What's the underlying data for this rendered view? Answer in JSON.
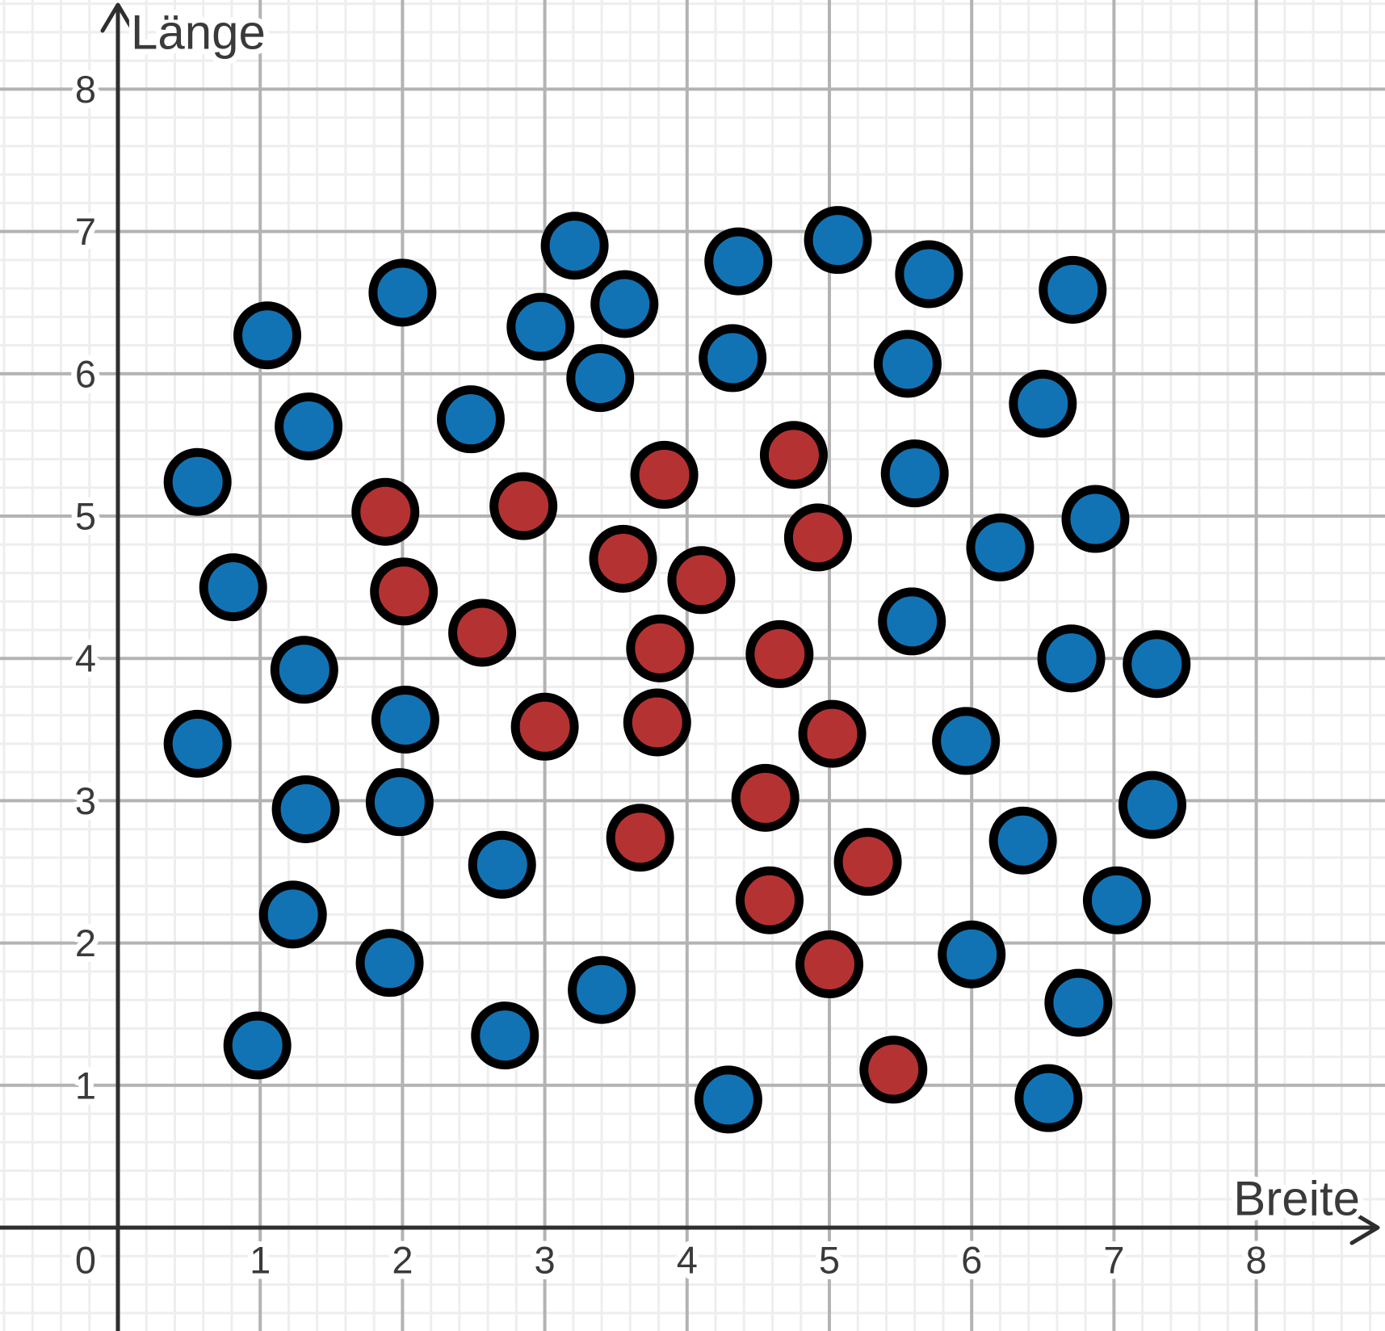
{
  "figure": {
    "background": "#ffffff",
    "axis_color": "#2e2e2e",
    "label_color": "#3a3a3a",
    "grid_major_color": "#b3b3b3",
    "grid_minor_color": "#eeeeee",
    "dot_stroke_color": "#000000"
  },
  "chart_data": {
    "type": "scatter",
    "title": "",
    "xlabel": "Breite",
    "ylabel": "Länge",
    "origin_label": "0",
    "xlim": [
      -0.83,
      8.9
    ],
    "ylim": [
      -0.73,
      8.63
    ],
    "x_ticks": [
      1,
      2,
      3,
      4,
      5,
      6,
      7,
      8
    ],
    "y_ticks": [
      1,
      2,
      3,
      4,
      5,
      6,
      7,
      8
    ],
    "grid": {
      "major_step": 1,
      "minor_step": 0.2,
      "visible": true
    },
    "legend": null,
    "series": [
      {
        "name": "blue",
        "color": "#1173b4",
        "points": [
          [
            3.21,
            6.9
          ],
          [
            5.06,
            6.94
          ],
          [
            4.36,
            6.79
          ],
          [
            5.7,
            6.7
          ],
          [
            6.71,
            6.59
          ],
          [
            2.0,
            6.57
          ],
          [
            3.56,
            6.49
          ],
          [
            2.97,
            6.33
          ],
          [
            1.05,
            6.27
          ],
          [
            4.32,
            6.11
          ],
          [
            5.55,
            6.07
          ],
          [
            3.39,
            5.97
          ],
          [
            6.5,
            5.79
          ],
          [
            2.48,
            5.68
          ],
          [
            1.34,
            5.63
          ],
          [
            5.6,
            5.3
          ],
          [
            0.56,
            5.24
          ],
          [
            6.87,
            4.98
          ],
          [
            6.2,
            4.78
          ],
          [
            0.81,
            4.5
          ],
          [
            5.58,
            4.26
          ],
          [
            6.7,
            4.0
          ],
          [
            7.3,
            3.96
          ],
          [
            1.31,
            3.92
          ],
          [
            2.02,
            3.57
          ],
          [
            5.96,
            3.42
          ],
          [
            0.56,
            3.4
          ],
          [
            1.98,
            2.99
          ],
          [
            7.27,
            2.97
          ],
          [
            1.32,
            2.94
          ],
          [
            6.36,
            2.72
          ],
          [
            2.7,
            2.55
          ],
          [
            7.02,
            2.3
          ],
          [
            1.23,
            2.2
          ],
          [
            6.0,
            1.92
          ],
          [
            1.91,
            1.86
          ],
          [
            3.4,
            1.67
          ],
          [
            6.75,
            1.58
          ],
          [
            2.72,
            1.35
          ],
          [
            0.98,
            1.28
          ],
          [
            6.54,
            0.91
          ],
          [
            4.29,
            0.9
          ]
        ]
      },
      {
        "name": "red",
        "color": "#b43232",
        "points": [
          [
            4.75,
            5.43
          ],
          [
            3.84,
            5.29
          ],
          [
            2.85,
            5.07
          ],
          [
            1.88,
            5.03
          ],
          [
            4.92,
            4.85
          ],
          [
            3.55,
            4.7
          ],
          [
            4.1,
            4.55
          ],
          [
            2.01,
            4.47
          ],
          [
            2.56,
            4.18
          ],
          [
            3.81,
            4.07
          ],
          [
            4.65,
            4.03
          ],
          [
            3.79,
            3.55
          ],
          [
            3.0,
            3.52
          ],
          [
            5.02,
            3.47
          ],
          [
            4.55,
            3.02
          ],
          [
            3.67,
            2.74
          ],
          [
            5.27,
            2.57
          ],
          [
            4.58,
            2.3
          ],
          [
            5.0,
            1.85
          ],
          [
            5.45,
            1.11
          ]
        ]
      }
    ]
  }
}
